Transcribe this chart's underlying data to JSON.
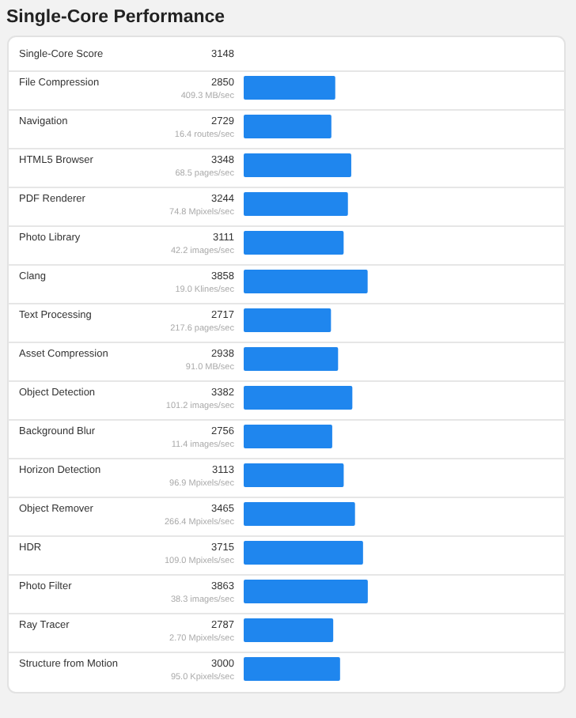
{
  "chart_data": {
    "type": "bar",
    "orientation": "horizontal",
    "title": "Single-Core Performance",
    "categories": [
      "File Compression",
      "Navigation",
      "HTML5 Browser",
      "PDF Renderer",
      "Photo Library",
      "Clang",
      "Text Processing",
      "Asset Compression",
      "Object Detection",
      "Background Blur",
      "Horizon Detection",
      "Object Remover",
      "HDR",
      "Photo Filter",
      "Ray Tracer",
      "Structure from Motion"
    ],
    "values": [
      2850,
      2729,
      3348,
      3244,
      3111,
      3858,
      2717,
      2938,
      3382,
      2756,
      3113,
      3465,
      3715,
      3863,
      2787,
      3000
    ],
    "color": "#1f86ee",
    "data_labels": true,
    "annotations": [
      "Single-Core Score",
      "3148",
      "409.3 MB/sec",
      "16.4 routes/sec",
      "68.5 pages/sec",
      "74.8 Mpixels/sec",
      "42.2 images/sec",
      "19.0 Klines/sec",
      "217.6 pages/sec",
      "91.0 MB/sec",
      "101.2 images/sec",
      "11.4 images/sec",
      "96.9 Mpixels/sec",
      "266.4 Mpixels/sec",
      "109.0 Mpixels/sec",
      "38.3 images/sec",
      "2.70 Mpixels/sec",
      "95.0 Kpixels/sec"
    ]
  }
}
